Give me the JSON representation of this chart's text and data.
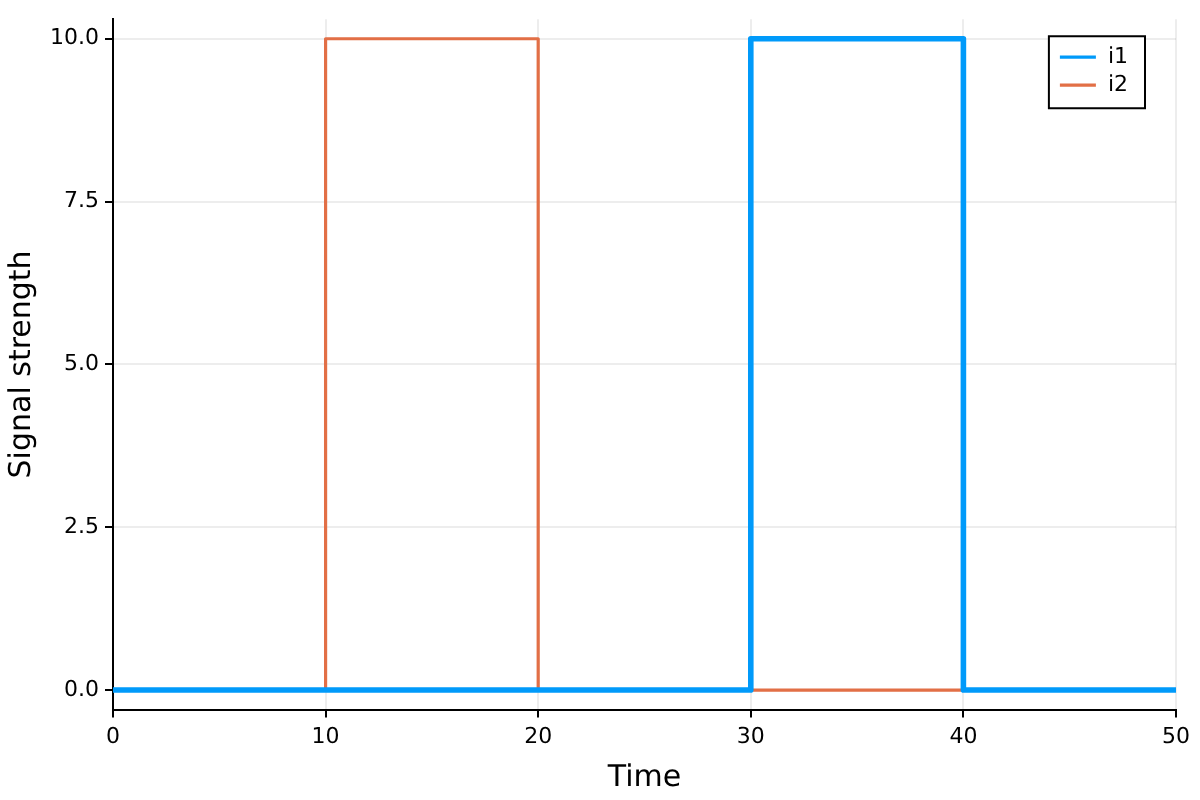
{
  "chart_data": {
    "type": "step",
    "xlabel": "Time",
    "ylabel": "Signal strength",
    "xlim": [
      0,
      50
    ],
    "xticks": [
      0,
      10,
      20,
      30,
      40,
      50
    ],
    "ylim": [
      -0.3,
      10.3
    ],
    "yticks": [
      {
        "value": 0,
        "label": "0.0"
      },
      {
        "value": 2.5,
        "label": "2.5"
      },
      {
        "value": 5,
        "label": "5.0"
      },
      {
        "value": 7.5,
        "label": "7.5"
      },
      {
        "value": 10,
        "label": "10.0"
      }
    ],
    "grid": true,
    "legend": "top right",
    "line_style": "solid",
    "marker": "none",
    "series": [
      {
        "name": "i1",
        "color": "#009afa",
        "x": [
          0,
          30,
          40,
          50
        ],
        "values": [
          0,
          10,
          0,
          0
        ]
      },
      {
        "name": "i2",
        "color": "#e26f46",
        "x": [
          0,
          10,
          20,
          50
        ],
        "values": [
          0,
          10,
          0,
          0
        ]
      }
    ]
  }
}
